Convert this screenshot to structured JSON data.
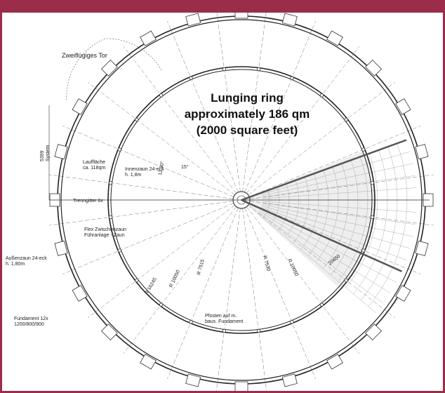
{
  "caption": {
    "lines": [
      "Lunging ring",
      "approximately 186 qm",
      "(2000 square feet)"
    ]
  },
  "labels": {
    "gate": "Zweiflügiges Tor",
    "track": [
      "Lauffläche",
      "ca. 118qm"
    ],
    "inner_fence": [
      "Innenzaun 24-eck",
      "h. 1,8m"
    ],
    "divider": "Trenngitter 6x",
    "flex_fence": [
      "Flex Zwischenzaun",
      "Führanlage - Zaun"
    ],
    "outer_fence": [
      "Außenzaun 24-eck",
      "h. 1,80m"
    ],
    "foundation": [
      "Fundament 12x",
      "1200/800/900"
    ],
    "post": [
      "Pfosten auf m.",
      "baus. Fundament"
    ],
    "system": [
      "5399",
      "System"
    ],
    "angle_a": "15°",
    "angle_b": "12,30°",
    "radii": [
      "R 16245",
      "R 10050",
      "R 7515",
      "R 7530",
      "R 10050"
    ],
    "span": "20650"
  }
}
